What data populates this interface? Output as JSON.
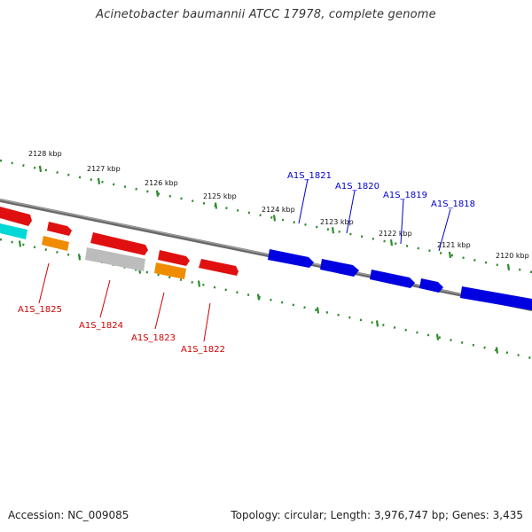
{
  "title": "Acinetobacter baumannii ATCC 17978, complete genome",
  "footer": {
    "accession": "Accession: NC_009085",
    "summary": "Topology: circular; Length: 3,976,747 bp; Genes: 3,435"
  },
  "colors": {
    "forward_gene": "#e01010",
    "reverse_gene": "#0000e0",
    "rna_gene": "#f08c00",
    "cyan_feature": "#00d8d8",
    "pseudo_gene": "#bcbcbc",
    "tick": "#2e8b2e",
    "backbone": "#777777"
  },
  "ruler_labels": [
    "2128 kbp",
    "2127 kbp",
    "2126 kbp",
    "2125 kbp",
    "2124 kbp",
    "2123 kbp",
    "2122 kbp",
    "2121 kbp",
    "2120 kbp"
  ],
  "forward_labels": [
    "A1S_1821",
    "A1S_1820",
    "A1S_1819",
    "A1S_1818"
  ],
  "reverse_labels": [
    "A1S_1825",
    "A1S_1824",
    "A1S_1823",
    "A1S_1822"
  ]
}
